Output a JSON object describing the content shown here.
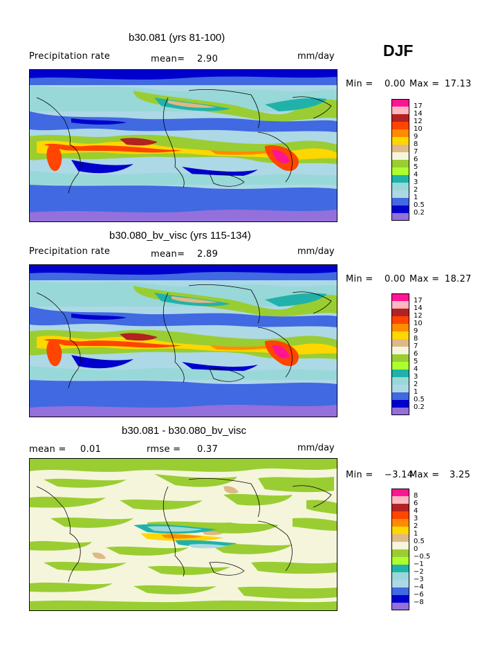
{
  "season": "DJF",
  "panels": [
    {
      "title": "b30.081 (yrs 81-100)",
      "left_label": "Precipitation rate",
      "mean_label": "mean=",
      "mean_value": "2.90",
      "units": "mm/day",
      "minmax": {
        "min_label": "Min =",
        "min": "0.00",
        "max_label": "Max =",
        "max": "17.13"
      },
      "colorbar": {
        "labels": [
          "17",
          "14",
          "12",
          "10",
          "9",
          "8",
          "7",
          "6",
          "5",
          "4",
          "3",
          "2",
          "1",
          "0.5",
          "0.2"
        ],
        "colors": [
          "#ff1493",
          "#ffb6c1",
          "#b22222",
          "#ff4500",
          "#ff8c00",
          "#ffd700",
          "#deb887",
          "#f5f5dc",
          "#9acd32",
          "#adff2f",
          "#20b2aa",
          "#98d8d8",
          "#add8e6",
          "#4169e1",
          "#0000cd",
          "#9370db"
        ]
      }
    },
    {
      "title": "b30.080_bv_visc (yrs 115-134)",
      "left_label": "Precipitation rate",
      "mean_label": "mean=",
      "mean_value": "2.89",
      "units": "mm/day",
      "minmax": {
        "min_label": "Min =",
        "min": "0.00",
        "max_label": "Max =",
        "max": "18.27"
      },
      "colorbar": {
        "labels": [
          "17",
          "14",
          "12",
          "10",
          "9",
          "8",
          "7",
          "6",
          "5",
          "4",
          "3",
          "2",
          "1",
          "0.5",
          "0.2"
        ],
        "colors": [
          "#ff1493",
          "#ffb6c1",
          "#b22222",
          "#ff4500",
          "#ff8c00",
          "#ffd700",
          "#deb887",
          "#f5f5dc",
          "#9acd32",
          "#adff2f",
          "#20b2aa",
          "#98d8d8",
          "#add8e6",
          "#4169e1",
          "#0000cd",
          "#9370db"
        ]
      }
    },
    {
      "title": "b30.081 - b30.080_bv_visc",
      "mean_label": "mean =",
      "mean_value": "0.01",
      "rmse_label": "rmse =",
      "rmse_value": "0.37",
      "units": "mm/day",
      "minmax": {
        "min_label": "Min =",
        "min": "−3.14",
        "max_label": "Max =",
        "max": "3.25"
      },
      "colorbar": {
        "labels": [
          "8",
          "6",
          "4",
          "3",
          "2",
          "1",
          "0.5",
          "0",
          "−0.5",
          "−1",
          "−2",
          "−3",
          "−4",
          "−6",
          "−8"
        ],
        "colors": [
          "#ff1493",
          "#ffb6c1",
          "#b22222",
          "#ff4500",
          "#ff8c00",
          "#ffd700",
          "#deb887",
          "#f5f5dc",
          "#9acd32",
          "#adff2f",
          "#20b2aa",
          "#98d8d8",
          "#add8e6",
          "#4169e1",
          "#0000cd",
          "#9370db"
        ]
      }
    }
  ]
}
